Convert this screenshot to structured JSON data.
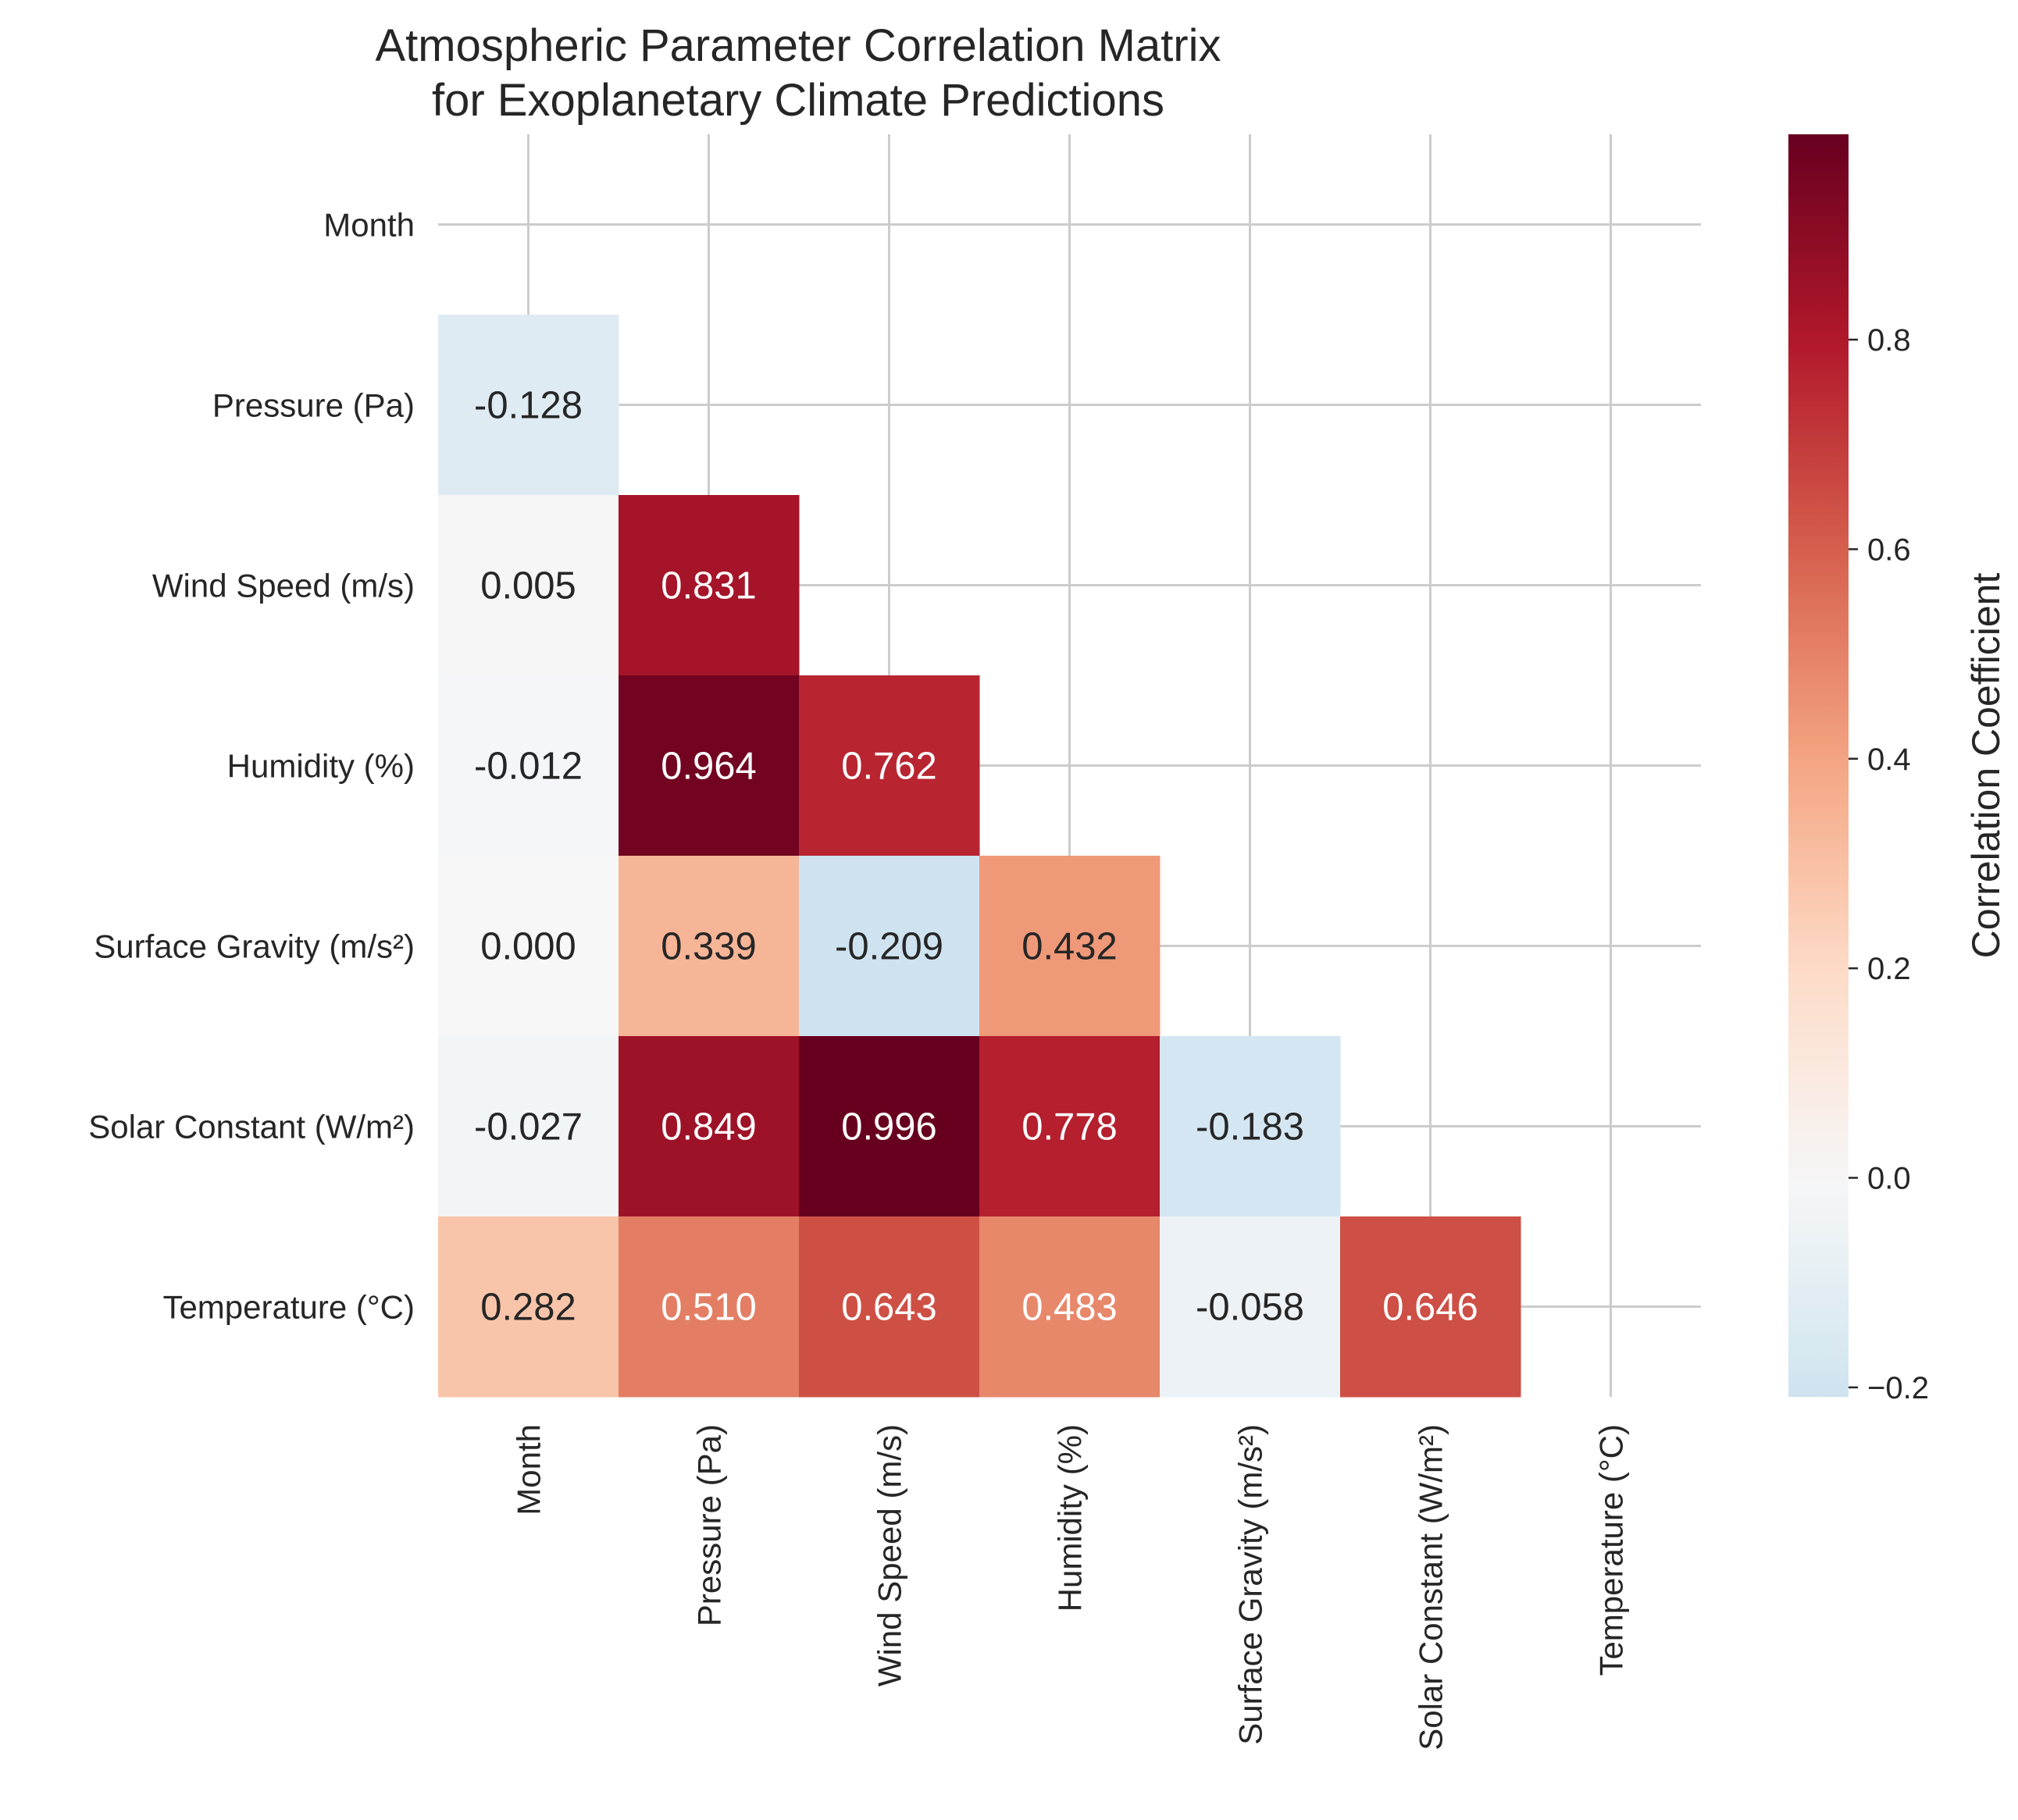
{
  "chart_data": {
    "type": "heatmap",
    "title": [
      "Atmospheric Parameter Correlation Matrix",
      "for Exoplanetary Climate Predictions"
    ],
    "labels": [
      "Month",
      "Pressure (Pa)",
      "Wind Speed (m/s)",
      "Humidity (%)",
      "Surface Gravity (m/s²)",
      "Solar Constant (W/m²)",
      "Temperature (°C)"
    ],
    "mask": "upper-triangle-including-diagonal",
    "matrix": [
      [
        null,
        null,
        null,
        null,
        null,
        null,
        null
      ],
      [
        -0.128,
        null,
        null,
        null,
        null,
        null,
        null
      ],
      [
        0.005,
        0.831,
        null,
        null,
        null,
        null,
        null
      ],
      [
        -0.012,
        0.964,
        0.762,
        null,
        null,
        null,
        null
      ],
      [
        0.0,
        0.339,
        -0.209,
        0.432,
        null,
        null,
        null
      ],
      [
        -0.027,
        0.849,
        0.996,
        0.778,
        -0.183,
        null,
        null
      ],
      [
        0.282,
        0.51,
        0.643,
        0.483,
        -0.058,
        0.646,
        null
      ]
    ],
    "cell_text": [
      [
        "",
        "",
        "",
        "",
        "",
        "",
        ""
      ],
      [
        "-0.128",
        "",
        "",
        "",
        "",
        "",
        ""
      ],
      [
        "0.005",
        "0.831",
        "",
        "",
        "",
        "",
        ""
      ],
      [
        "-0.012",
        "0.964",
        "0.762",
        "",
        "",
        "",
        ""
      ],
      [
        "0.000",
        "0.339",
        "-0.209",
        "0.432",
        "",
        "",
        ""
      ],
      [
        "-0.027",
        "0.849",
        "0.996",
        "0.778",
        "-0.183",
        "",
        ""
      ],
      [
        "0.282",
        "0.510",
        "0.643",
        "0.483",
        "-0.058",
        "0.646",
        ""
      ]
    ],
    "colormap": "RdBu_r",
    "colormap_center": 0,
    "vmin": -0.209,
    "vmax": 0.996,
    "colorbar": {
      "label": "Correlation Coefficient",
      "ticks": [
        -0.2,
        0.0,
        0.2,
        0.4,
        0.6,
        0.8
      ],
      "tick_labels": [
        "−0.2",
        "0.0",
        "0.2",
        "0.4",
        "0.6",
        "0.8"
      ]
    },
    "grid": true,
    "colors": {
      "text": "#262626",
      "grid": "#cccccc",
      "background": "#ffffff"
    }
  }
}
